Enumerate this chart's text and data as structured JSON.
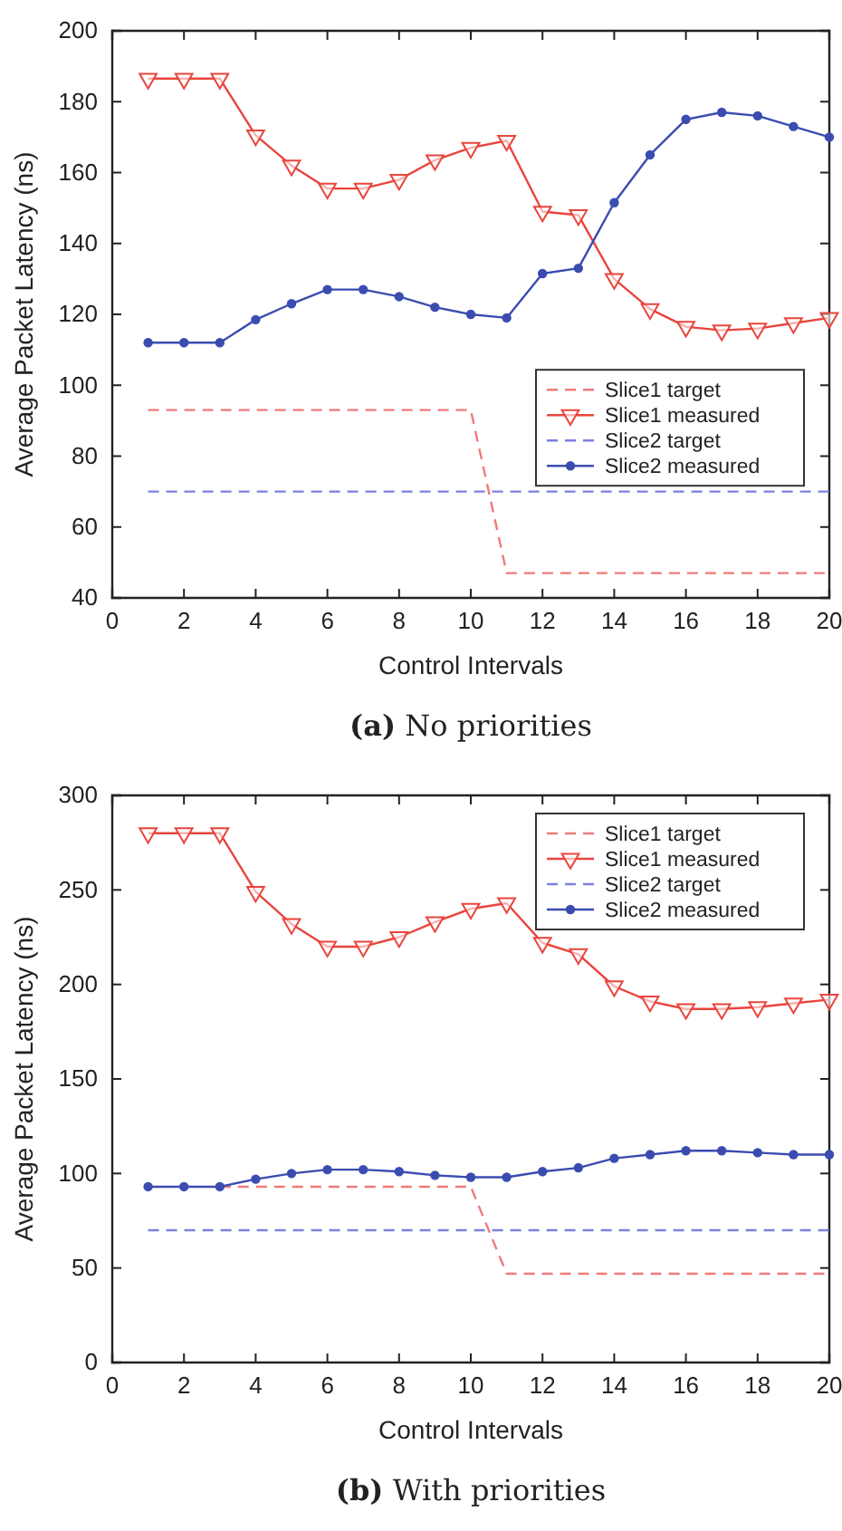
{
  "chart_data": [
    {
      "type": "line",
      "title": "(a) No priorities",
      "xlabel": "Control Intervals",
      "ylabel": "Average Packet Latency (ns)",
      "x": [
        1,
        2,
        3,
        4,
        5,
        6,
        7,
        8,
        9,
        10,
        11,
        12,
        13,
        14,
        15,
        16,
        17,
        18,
        19,
        20
      ],
      "xlim": [
        0,
        20
      ],
      "xticks": [
        0,
        2,
        4,
        6,
        8,
        10,
        12,
        14,
        16,
        18,
        20
      ],
      "ylim": [
        40,
        200
      ],
      "yticks": [
        40,
        60,
        80,
        100,
        120,
        140,
        160,
        180,
        200
      ],
      "grid": false,
      "legend": "right",
      "series": [
        {
          "name": "Slice1 target",
          "color": "#f07a7a",
          "line_style": "dashed",
          "marker": "none",
          "values": [
            93,
            93,
            93,
            93,
            93,
            93,
            93,
            93,
            93,
            93,
            47,
            47,
            47,
            47,
            47,
            47,
            47,
            47,
            47,
            47
          ]
        },
        {
          "name": "Slice1 measured",
          "color": "#e8453c",
          "line_style": "solid",
          "marker": "triangle",
          "values": [
            186.5,
            186.5,
            186.5,
            170.5,
            162,
            155.5,
            155.5,
            158,
            163.5,
            167,
            169,
            149,
            148,
            130,
            121.5,
            116.5,
            115.5,
            116,
            117.5,
            119
          ]
        },
        {
          "name": "Slice2 target",
          "color": "#7f7fe0",
          "line_style": "dashed",
          "marker": "none",
          "values": [
            70,
            70,
            70,
            70,
            70,
            70,
            70,
            70,
            70,
            70,
            70,
            70,
            70,
            70,
            70,
            70,
            70,
            70,
            70,
            70
          ]
        },
        {
          "name": "Slice2 measured",
          "color": "#3b4cb0",
          "line_style": "solid",
          "marker": "circle",
          "values": [
            112,
            112,
            112,
            118.5,
            123,
            127,
            127,
            125,
            122,
            120,
            119,
            131.5,
            133,
            151.5,
            165,
            175,
            177,
            176,
            173,
            170
          ]
        }
      ]
    },
    {
      "type": "line",
      "title": "(b) With priorities",
      "xlabel": "Control Intervals",
      "ylabel": "Average Packet Latency (ns)",
      "x": [
        1,
        2,
        3,
        4,
        5,
        6,
        7,
        8,
        9,
        10,
        11,
        12,
        13,
        14,
        15,
        16,
        17,
        18,
        19,
        20
      ],
      "xlim": [
        0,
        20
      ],
      "xticks": [
        0,
        2,
        4,
        6,
        8,
        10,
        12,
        14,
        16,
        18,
        20
      ],
      "ylim": [
        0,
        300
      ],
      "yticks": [
        0,
        50,
        100,
        150,
        200,
        250,
        300
      ],
      "grid": false,
      "legend": "top right",
      "series": [
        {
          "name": "Slice1 target",
          "color": "#f07a7a",
          "line_style": "dashed",
          "marker": "none",
          "values": [
            null,
            null,
            93,
            93,
            93,
            93,
            93,
            93,
            93,
            93,
            47,
            47,
            47,
            47,
            47,
            47,
            47,
            47,
            47,
            47
          ]
        },
        {
          "name": "Slice1 measured",
          "color": "#e8453c",
          "line_style": "solid",
          "marker": "triangle",
          "values": [
            280,
            280,
            280,
            249,
            232,
            220,
            220,
            225,
            233,
            240,
            243,
            222,
            216,
            199,
            191,
            187,
            187,
            188,
            190,
            192
          ]
        },
        {
          "name": "Slice2 target",
          "color": "#7f7fe0",
          "line_style": "dashed",
          "marker": "none",
          "values": [
            70,
            70,
            70,
            70,
            70,
            70,
            70,
            70,
            70,
            70,
            70,
            70,
            70,
            70,
            70,
            70,
            70,
            70,
            70,
            70
          ]
        },
        {
          "name": "Slice2 measured",
          "color": "#3b4cb0",
          "line_style": "solid",
          "marker": "circle",
          "values": [
            93,
            93,
            93,
            97,
            100,
            102,
            102,
            101,
            99,
            98,
            98,
            101,
            103,
            108,
            110,
            112,
            112,
            111,
            110,
            110
          ]
        }
      ]
    }
  ]
}
